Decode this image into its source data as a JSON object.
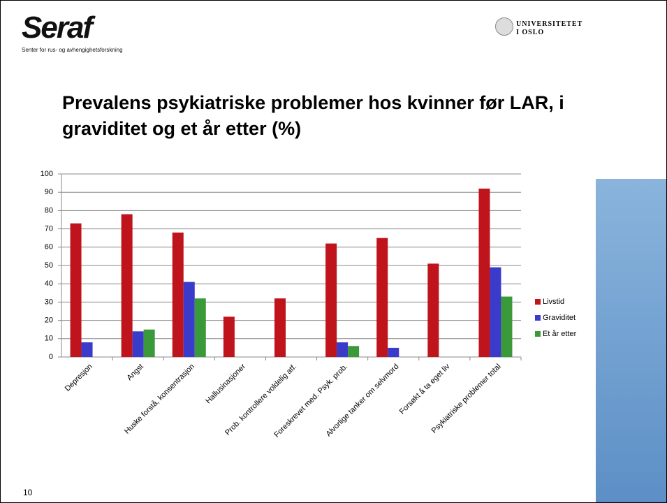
{
  "header": {
    "logo": "Seraf",
    "logo_subtitle": "Senter for rus- og avhengighetsforskning",
    "university": "UNIVERSITETET\nI OSLO"
  },
  "page_number": "10",
  "chart_data": {
    "type": "bar",
    "title": "Prevalens psykiatriske problemer hos kvinner før LAR, i graviditet og et år etter (%)",
    "categories": [
      "Depresjon",
      "Angst",
      "Huske forstå, konsentrasjon",
      "Hallusinasjoner",
      "Prob. kontrollere voldelig atf.",
      "Foreskrevet med. Psyk. prob.",
      "Alvorlige tanker om selvmord",
      "Forsøkt å ta eget liv",
      "Psykiatriske problemer total"
    ],
    "series": [
      {
        "name": "Livstid",
        "color": "#c0141c",
        "values": [
          73,
          78,
          68,
          22,
          32,
          62,
          65,
          51,
          92
        ]
      },
      {
        "name": "Graviditet",
        "color": "#3a3acb",
        "values": [
          8,
          14,
          41,
          0,
          0,
          8,
          5,
          0,
          49
        ]
      },
      {
        "name": "Et år etter",
        "color": "#3a9a3a",
        "values": [
          0,
          15,
          32,
          0,
          0,
          6,
          0,
          0,
          33
        ]
      }
    ],
    "ylim": [
      0,
      100
    ],
    "yticks": [
      0,
      10,
      20,
      30,
      40,
      50,
      60,
      70,
      80,
      90,
      100
    ],
    "grid": true,
    "legend": "right"
  }
}
